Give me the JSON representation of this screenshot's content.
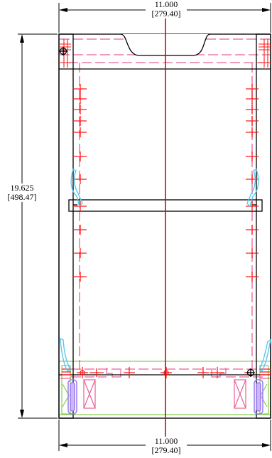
{
  "dimensions": {
    "top": {
      "value": "11.000",
      "metric": "[279.40]"
    },
    "left": {
      "value": "19.625",
      "metric": "[498.47]"
    },
    "bottom": {
      "value": "11.000",
      "metric": "[279.40]"
    }
  },
  "colors": {
    "outline": "#000000",
    "centerline": "#e00000",
    "hidden": "#e8609a",
    "hardware": "#ff1a1a",
    "hinge": "#5ac8f0",
    "base": "#88cc55",
    "leveler": "#9b7cf0"
  },
  "shelf_pin_rows": 12
}
